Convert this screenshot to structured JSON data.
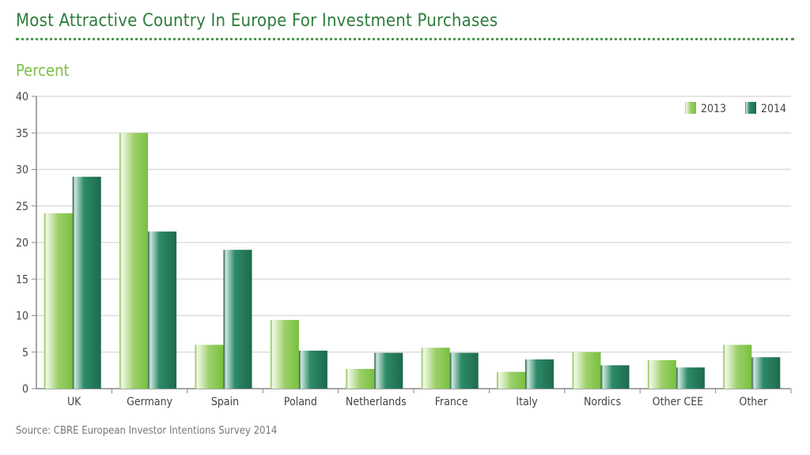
{
  "title": "Most Attractive Country In Europe For Investment Purchases",
  "subtitle": "Percent",
  "source": "Source: CBRE European Investor Intentions Survey 2014",
  "chart_data": {
    "type": "bar",
    "title": "Most Attractive Country In Europe For Investment Purchases",
    "ylabel": "Percent",
    "xlabel": "",
    "ylim": [
      0,
      40
    ],
    "yticks": [
      "0",
      "5",
      "10",
      "15",
      "20",
      "25",
      "30",
      "35",
      "40"
    ],
    "grid": true,
    "legend_position": "top-right",
    "categories": [
      "UK",
      "Germany",
      "Spain",
      "Poland",
      "Netherlands",
      "France",
      "Italy",
      "Nordics",
      "Other CEE",
      "Other"
    ],
    "series": [
      {
        "name": "2013",
        "color": "#7cc242",
        "values": [
          24,
          35,
          6,
          9.4,
          2.7,
          5.6,
          2.3,
          5.0,
          3.9,
          6.0
        ]
      },
      {
        "name": "2014",
        "color": "#1f7050",
        "values": [
          29,
          21.5,
          19,
          5.2,
          4.9,
          4.9,
          4.0,
          3.2,
          2.9,
          4.3
        ]
      }
    ]
  }
}
